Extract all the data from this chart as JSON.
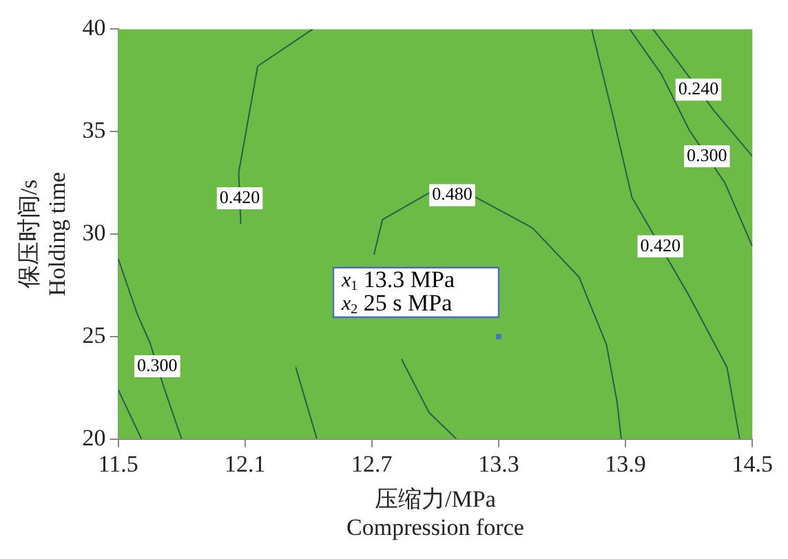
{
  "chart_data": {
    "type": "line",
    "xlabel": "压缩力/MPa\nCompression force",
    "ylabel": "保压时间/s\nHolding time",
    "xlim": [
      11.5,
      14.5
    ],
    "xticks": [
      11.5,
      12.1,
      12.7,
      13.3,
      13.9,
      14.5
    ],
    "ylim": [
      20,
      40
    ],
    "yticks": [
      20,
      25,
      30,
      35,
      40
    ],
    "grid": false,
    "legend": false,
    "marker": "none",
    "line_style": "solid",
    "series": [
      {
        "name": "0.480",
        "color": "#2a5e48",
        "x": [
          13.1,
          12.97,
          12.84,
          12.73,
          12.71,
          12.75,
          12.97,
          13.19,
          13.46,
          13.68,
          13.81,
          13.86,
          13.88
        ],
        "values": [
          20,
          21.3,
          23.9,
          null,
          29.0,
          30.7,
          32.0,
          31.8,
          30.3,
          27.9,
          24.6,
          21.8,
          20
        ]
      },
      {
        "name": "0.420",
        "color": "#2a5e48",
        "x": [
          12.42,
          12.16,
          12.07,
          12.08,
          12.14,
          12.34,
          12.44
        ],
        "values": [
          40,
          38.2,
          33.0,
          30.5,
          null,
          23.5,
          20
        ]
      },
      {
        "name": "0.420",
        "color": "#2a5e48",
        "x": [
          13.74,
          13.84,
          13.93,
          14.2,
          14.38,
          14.44
        ],
        "values": [
          40,
          35.8,
          31.8,
          27.0,
          23.5,
          20
        ]
      },
      {
        "name": "0.300",
        "color": "#2a5e48",
        "x": [
          11.5,
          11.59,
          11.65,
          11.72,
          11.8
        ],
        "values": [
          28.8,
          26.1,
          24.7,
          22.4,
          20
        ]
      },
      {
        "name": "0.300",
        "color": "#2a5e48",
        "x": [
          13.92,
          14.07,
          14.2,
          14.37,
          14.5
        ],
        "values": [
          40,
          37.8,
          35.1,
          32.5,
          29.4
        ]
      },
      {
        "name": "0.240",
        "color": "#2a5e48",
        "x": [
          14.03,
          14.17,
          14.32,
          14.5
        ],
        "values": [
          40,
          38.1,
          36.0,
          33.8
        ]
      },
      {
        "color": "#2a5e48",
        "x": [
          11.5,
          11.61
        ],
        "values": [
          22.4,
          20
        ]
      },
      {
        "type": "scatter",
        "marker": "square",
        "color": "#4a6fc0",
        "x": [
          13.3
        ],
        "values": [
          25
        ]
      }
    ],
    "annotations": [
      "x$_{1}$ 13.3 MPa",
      "x$_{2}$ 25 s MPa"
    ]
  }
}
